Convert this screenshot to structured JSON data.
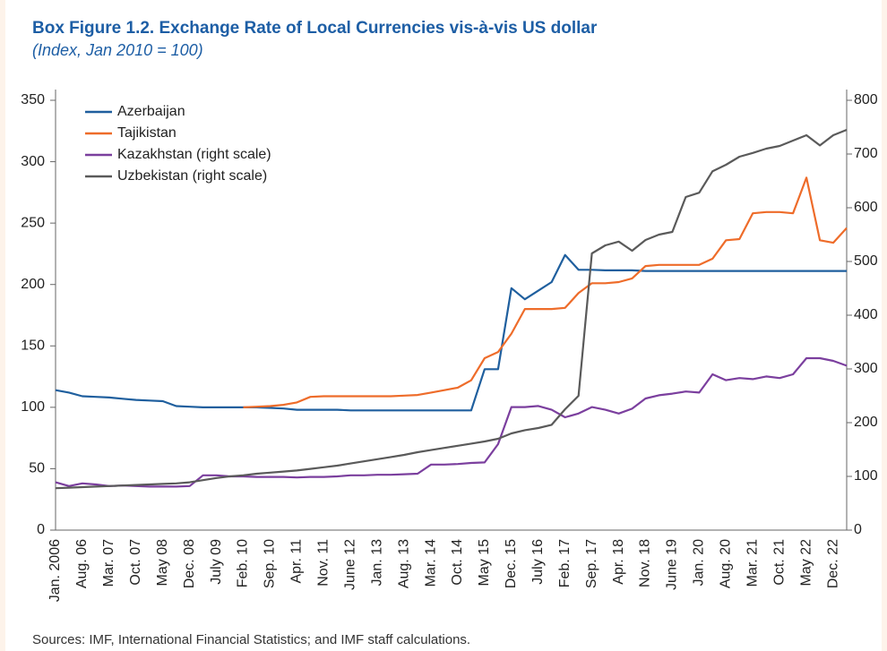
{
  "chart_data": {
    "type": "line",
    "title": "Box Figure 1.2. Exchange Rate of Local Currencies vis-à-vis US dollar",
    "subtitle": "(Index, Jan 2010 = 100)",
    "source": "Sources: IMF, International Financial Statistics; and IMF staff calculations.",
    "legend": "upper left",
    "categories": [
      "Jan. 2006",
      null,
      "Aug. 06",
      null,
      "Mar. 07",
      null,
      "Oct. 07",
      null,
      "May 08",
      null,
      "Dec. 08",
      null,
      "July 09",
      null,
      "Feb. 10",
      null,
      "Sep. 10",
      null,
      "Apr. 11",
      null,
      "Nov. 11",
      null,
      "June 12",
      null,
      "Jan. 13",
      null,
      "Aug. 13",
      null,
      "Mar. 14",
      null,
      "Oct. 14",
      null,
      "May 15",
      null,
      "Dec. 15",
      null,
      "July 16",
      null,
      "Feb. 17",
      null,
      "Sep. 17",
      null,
      "Apr. 18",
      null,
      "Nov. 18",
      null,
      "June 19",
      null,
      "Jan. 20",
      null,
      "Aug. 20",
      null,
      "Mar. 21",
      null,
      "Oct. 21",
      null,
      "May 22",
      null,
      "Dec. 22",
      null
    ],
    "ylim": [
      0,
      350
    ],
    "yticks": [
      0,
      50,
      100,
      150,
      200,
      250,
      300,
      350
    ],
    "y2lim": [
      0,
      800
    ],
    "y2ticks": [
      0,
      100,
      200,
      300,
      400,
      500,
      600,
      700,
      800
    ],
    "series": [
      {
        "name": "Azerbaijan",
        "color": "#1f5f9e",
        "axis": "y",
        "values": [
          114,
          112,
          109,
          108.5,
          108,
          107,
          106,
          105.5,
          105,
          101,
          100.5,
          100,
          100,
          100,
          100,
          100,
          99.5,
          99,
          98,
          98,
          98,
          98,
          97.5,
          97.5,
          97.5,
          97.5,
          97.5,
          97.5,
          97.5,
          97.5,
          97.5,
          97.5,
          131,
          131,
          197,
          188,
          195,
          202,
          224,
          212,
          212,
          211.5,
          211.5,
          211.5,
          211,
          211,
          211,
          211,
          211,
          211,
          211,
          211,
          211,
          211,
          211,
          211,
          211,
          211,
          211,
          211
        ]
      },
      {
        "name": "Tajikistan",
        "color": "#ee6c2a",
        "axis": "y",
        "values": [
          null,
          null,
          null,
          null,
          null,
          null,
          null,
          null,
          null,
          null,
          null,
          null,
          null,
          null,
          100,
          100.5,
          101,
          102,
          104,
          108.5,
          109,
          109,
          109,
          109,
          109,
          109,
          109.5,
          110,
          112,
          114,
          116,
          122,
          140,
          145,
          160,
          180,
          180,
          180,
          181,
          193,
          201,
          201,
          202,
          205,
          215,
          216,
          216,
          216,
          216,
          221,
          236,
          237,
          258,
          259,
          259,
          258,
          287,
          236,
          234,
          246
        ]
      },
      {
        "name": "Kazakhstan (right scale)",
        "color": "#7b3f9e",
        "axis": "y2",
        "values": [
          89,
          82,
          87,
          85,
          82,
          83,
          82,
          81,
          81,
          81,
          82,
          102,
          102,
          100,
          100,
          99,
          99,
          99,
          98,
          99,
          99,
          100,
          102,
          102,
          103,
          103,
          104,
          105,
          122,
          122,
          123,
          125,
          126,
          160,
          229,
          229,
          231,
          224,
          210,
          217,
          229,
          224,
          217,
          226,
          245,
          251,
          254,
          258,
          256,
          290,
          279,
          283,
          281,
          286,
          283,
          290,
          320,
          320,
          315,
          306
        ]
      },
      {
        "name": "Uzbekistan (right scale)",
        "color": "#5a5a5a",
        "axis": "y2",
        "values": [
          78,
          79,
          80,
          81,
          82,
          83,
          84,
          85,
          86,
          87,
          89,
          93,
          97,
          100,
          102,
          105,
          107,
          109,
          111,
          114,
          117,
          120,
          124,
          128,
          132,
          136,
          140,
          145,
          149,
          153,
          157,
          161,
          165,
          170,
          180,
          186,
          190,
          196,
          225,
          250,
          515,
          530,
          537,
          520,
          540,
          550,
          555,
          620,
          628,
          668,
          680,
          695,
          702,
          710,
          715,
          725,
          735,
          716,
          735,
          745
        ]
      }
    ]
  }
}
